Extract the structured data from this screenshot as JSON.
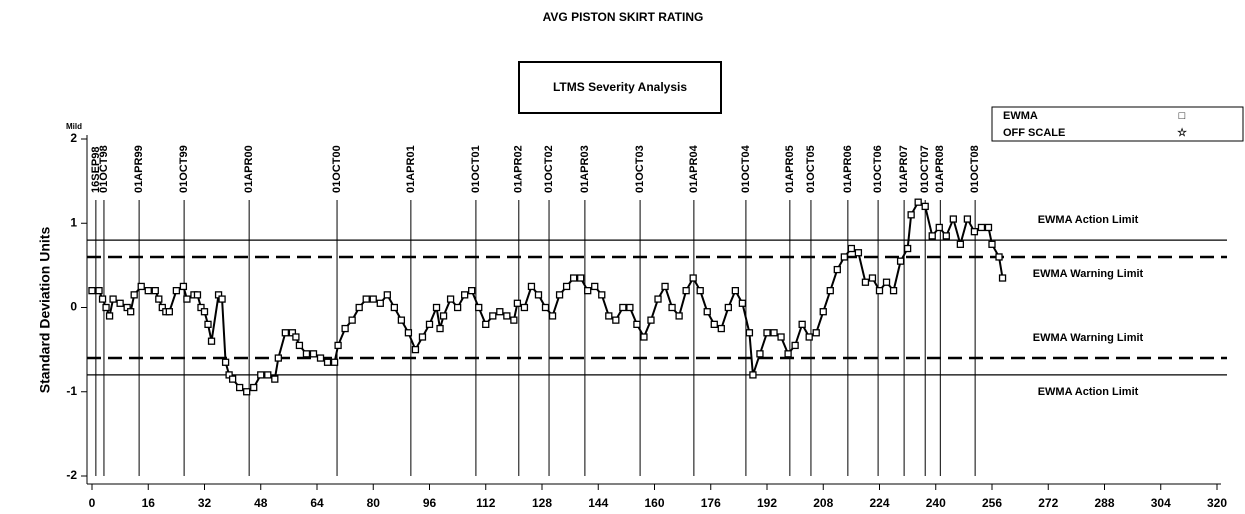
{
  "chart_data": {
    "type": "line",
    "title": "AVG PISTON SKIRT RATING",
    "subtitle": "LTMS Severity Analysis",
    "ylabel": "Standard Deviation Units",
    "y_top_label": "Mild",
    "xlim": [
      0,
      320
    ],
    "xticks": [
      0,
      16,
      32,
      48,
      64,
      80,
      96,
      112,
      128,
      144,
      160,
      176,
      192,
      208,
      224,
      240,
      256,
      272,
      288,
      304,
      320
    ],
    "ylim": [
      -2,
      2
    ],
    "yticks": [
      -2,
      -1,
      0,
      1,
      2
    ],
    "series": [
      {
        "name": "EWMA",
        "symbol": "□",
        "color": "#000000",
        "x": [
          0,
          2,
          3,
          4,
          5,
          6,
          8,
          10,
          11,
          12,
          14,
          16,
          18,
          19,
          20,
          21,
          22,
          24,
          26,
          27,
          29,
          30,
          31,
          32,
          33,
          34,
          36,
          37,
          38,
          39,
          40,
          42,
          44,
          46,
          48,
          50,
          52,
          53,
          55,
          57,
          58,
          59,
          61,
          63,
          65,
          67,
          69,
          70,
          72,
          74,
          76,
          78,
          80,
          82,
          84,
          86,
          88,
          90,
          92,
          94,
          96,
          98,
          99,
          100,
          102,
          104,
          106,
          108,
          110,
          112,
          114,
          116,
          118,
          120,
          121,
          123,
          125,
          127,
          129,
          131,
          133,
          135,
          137,
          139,
          141,
          143,
          145,
          147,
          149,
          151,
          153,
          155,
          157,
          159,
          161,
          163,
          165,
          167,
          169,
          171,
          173,
          175,
          177,
          179,
          181,
          183,
          185,
          187,
          188,
          190,
          192,
          194,
          196,
          198,
          200,
          202,
          204,
          206,
          208,
          210,
          212,
          214,
          216,
          218,
          220,
          222,
          224,
          226,
          228,
          230,
          232,
          233,
          235,
          237,
          239,
          241,
          243,
          245,
          247,
          249,
          251,
          253,
          255,
          256,
          258,
          259
        ],
        "values": [
          0.2,
          0.2,
          0.1,
          0.0,
          -0.1,
          0.1,
          0.05,
          0.0,
          -0.05,
          0.15,
          0.25,
          0.2,
          0.2,
          0.1,
          0.0,
          -0.05,
          -0.05,
          0.2,
          0.25,
          0.1,
          0.15,
          0.15,
          0.0,
          -0.05,
          -0.2,
          -0.4,
          0.15,
          0.1,
          -0.65,
          -0.8,
          -0.85,
          -0.95,
          -1.0,
          -0.95,
          -0.8,
          -0.8,
          -0.85,
          -0.6,
          -0.3,
          -0.3,
          -0.35,
          -0.45,
          -0.55,
          -0.55,
          -0.6,
          -0.65,
          -0.65,
          -0.45,
          -0.25,
          -0.15,
          0.0,
          0.1,
          0.1,
          0.05,
          0.15,
          0.0,
          -0.15,
          -0.3,
          -0.5,
          -0.35,
          -0.2,
          0.0,
          -0.25,
          -0.1,
          0.1,
          0.0,
          0.15,
          0.2,
          0.0,
          -0.2,
          -0.1,
          -0.05,
          -0.1,
          -0.15,
          0.05,
          0.0,
          0.25,
          0.15,
          0.0,
          -0.1,
          0.15,
          0.25,
          0.35,
          0.35,
          0.2,
          0.25,
          0.15,
          -0.1,
          -0.15,
          0.0,
          0.0,
          -0.2,
          -0.35,
          -0.15,
          0.1,
          0.25,
          0.0,
          -0.1,
          0.2,
          0.35,
          0.2,
          -0.05,
          -0.2,
          -0.25,
          0.0,
          0.2,
          0.05,
          -0.3,
          -0.8,
          -0.55,
          -0.3,
          -0.3,
          -0.35,
          -0.55,
          -0.45,
          -0.2,
          -0.35,
          -0.3,
          -0.05,
          0.2,
          0.45,
          0.6,
          0.7,
          0.65,
          0.3,
          0.35,
          0.2,
          0.3,
          0.2,
          0.55,
          0.7,
          1.1,
          1.25,
          1.2,
          0.85,
          0.95,
          0.85,
          1.05,
          0.75,
          1.05,
          0.9,
          0.95,
          0.95,
          0.75,
          0.6,
          0.35
        ]
      }
    ],
    "legend_extra": [
      {
        "name": "OFF SCALE",
        "symbol": "☆"
      }
    ],
    "legend": "top-right",
    "control_limits": [
      {
        "value": 0.8,
        "label": "EWMA Action Limit",
        "style": "solid"
      },
      {
        "value": 0.6,
        "label": "EWMA Warning Limit",
        "style": "dashed"
      },
      {
        "value": -0.6,
        "label": "EWMA Warning Limit",
        "style": "dashed"
      },
      {
        "value": -0.8,
        "label": "EWMA Action Limit",
        "style": "solid"
      }
    ],
    "events": [
      {
        "x": 1.1,
        "label": "16SEP98"
      },
      {
        "x": 3.4,
        "label": "01OCT98"
      },
      {
        "x": 13.4,
        "label": "01APR99"
      },
      {
        "x": 26.2,
        "label": "01OCT99"
      },
      {
        "x": 44.7,
        "label": "01APR00"
      },
      {
        "x": 69.7,
        "label": "01OCT00"
      },
      {
        "x": 90.7,
        "label": "01APR01"
      },
      {
        "x": 109.2,
        "label": "01OCT01"
      },
      {
        "x": 121.4,
        "label": "01APR02"
      },
      {
        "x": 130,
        "label": "01OCT02"
      },
      {
        "x": 140.2,
        "label": "01APR03"
      },
      {
        "x": 155.9,
        "label": "01OCT03"
      },
      {
        "x": 171.2,
        "label": "01APR04"
      },
      {
        "x": 186,
        "label": "01OCT04"
      },
      {
        "x": 198.5,
        "label": "01APR05"
      },
      {
        "x": 204.5,
        "label": "01OCT05"
      },
      {
        "x": 215,
        "label": "01APR06"
      },
      {
        "x": 223.6,
        "label": "01OCT06"
      },
      {
        "x": 231,
        "label": "01APR07"
      },
      {
        "x": 237,
        "label": "01OCT07"
      },
      {
        "x": 241.3,
        "label": "01APR08"
      },
      {
        "x": 251.2,
        "label": "01OCT08"
      }
    ]
  }
}
